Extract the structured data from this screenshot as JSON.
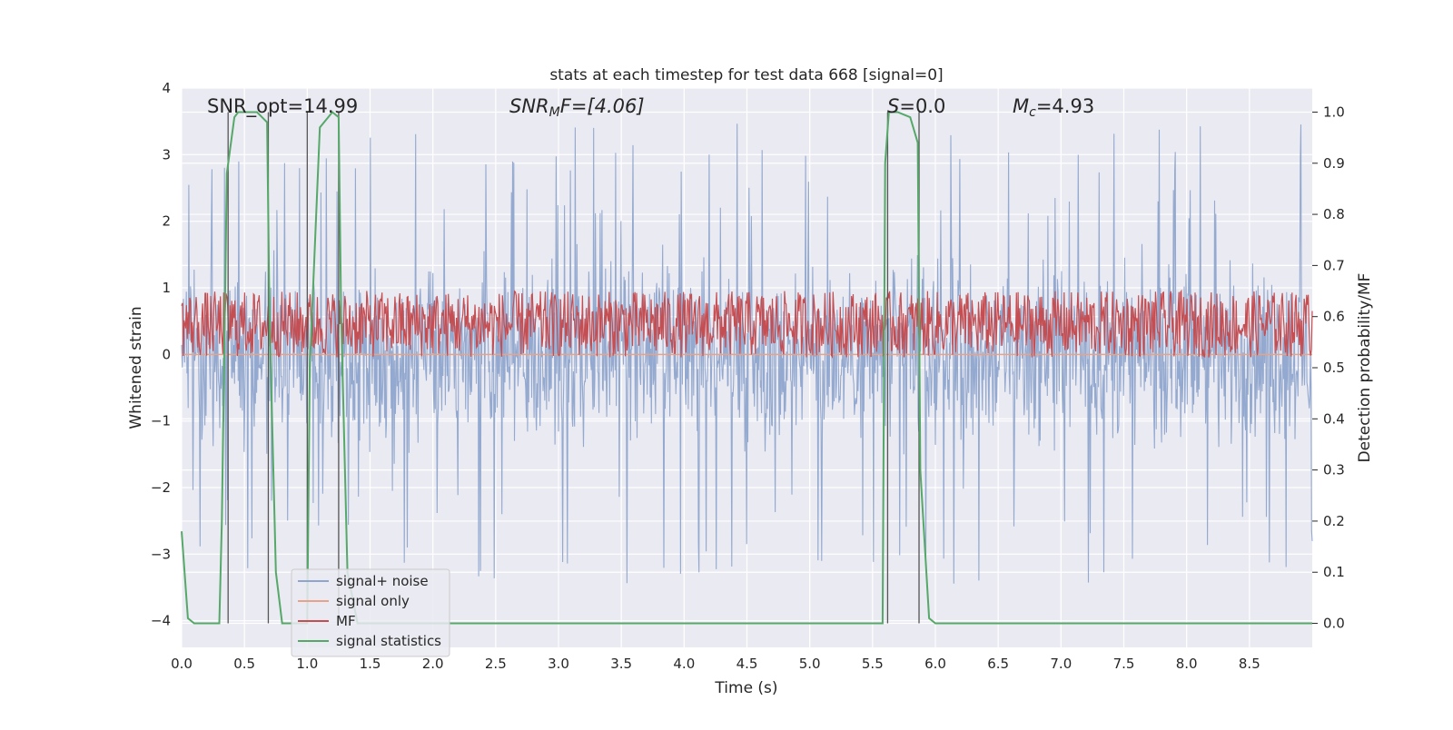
{
  "chart_data": {
    "type": "line",
    "title": "stats at each timestep for test data 668 [signal=0]",
    "xlabel": "Time (s)",
    "ylabel": "Whitened strain",
    "ylabel_right": "Detection probability/MF",
    "xlim": [
      0.0,
      9.0
    ],
    "ylim": [
      -4.4,
      4.0
    ],
    "ylim_right": [
      -0.047,
      1.047
    ],
    "xticks": [
      "0.0",
      "0.5",
      "1.0",
      "1.5",
      "2.0",
      "2.5",
      "3.0",
      "3.5",
      "4.0",
      "4.5",
      "5.0",
      "5.5",
      "6.0",
      "6.5",
      "7.0",
      "7.5",
      "8.0",
      "8.5"
    ],
    "yticks": [
      "4",
      "3",
      "2",
      "1",
      "0",
      "−1",
      "−2",
      "−3",
      "−4"
    ],
    "yticks_right": [
      "1.0",
      "0.9",
      "0.8",
      "0.7",
      "0.6",
      "0.5",
      "0.4",
      "0.3",
      "0.2",
      "0.1",
      "0.0"
    ],
    "grid": true,
    "legend_position": "bottom-left",
    "annotations": {
      "snr_opt": "SNR_opt=14.99",
      "snr_mf_prefix": "SNR",
      "snr_mf_sub": "M",
      "snr_mf_suffix": "F=[4.06]",
      "s_prefix": "S",
      "s_suffix": "=0.0",
      "mc_prefix": "M",
      "mc_sub": "c",
      "mc_suffix": "=4.93"
    },
    "series": [
      {
        "name": "signal+ noise",
        "color": "#8fa5cc",
        "kind": "noise",
        "description_range": [
          -3.5,
          3.7
        ]
      },
      {
        "name": "signal only",
        "color": "#e6a38a",
        "kind": "flat",
        "value": 0.0
      },
      {
        "name": "MF",
        "color": "#c44e52",
        "axis": "right",
        "kind": "noise",
        "description_range": [
          0.52,
          0.65
        ]
      },
      {
        "name": "signal statistics",
        "color": "#55a868",
        "axis": "right",
        "x": [
          0.0,
          0.05,
          0.1,
          0.2,
          0.3,
          0.32,
          0.36,
          0.42,
          0.45,
          0.6,
          0.68,
          0.7,
          0.75,
          0.8,
          0.9,
          1.0,
          1.02,
          1.1,
          1.2,
          1.25,
          1.27,
          1.32,
          1.4,
          1.5,
          2.0,
          3.0,
          4.0,
          5.0,
          5.5,
          5.58,
          5.6,
          5.63,
          5.7,
          5.8,
          5.86,
          5.88,
          5.95,
          6.0,
          6.05,
          6.5,
          7.0,
          8.0,
          9.0
        ],
        "y": [
          0.18,
          0.01,
          0.0,
          0.0,
          0.0,
          0.2,
          0.88,
          0.99,
          1.0,
          1.0,
          0.98,
          0.6,
          0.1,
          0.0,
          0.0,
          0.0,
          0.5,
          0.97,
          1.0,
          0.99,
          0.6,
          0.1,
          0.0,
          0.0,
          0.0,
          0.0,
          0.0,
          0.0,
          0.0,
          0.0,
          0.9,
          1.0,
          1.0,
          0.99,
          0.94,
          0.3,
          0.01,
          0.0,
          0.0,
          0.0,
          0.0,
          0.0,
          0.0
        ]
      }
    ],
    "vertical_markers": [
      {
        "x1": 0.37,
        "x2": 0.69
      },
      {
        "x1": 1.0,
        "x2": 1.25
      },
      {
        "x1": 5.62,
        "x2": 5.87
      }
    ],
    "marker_color": "#555555"
  }
}
